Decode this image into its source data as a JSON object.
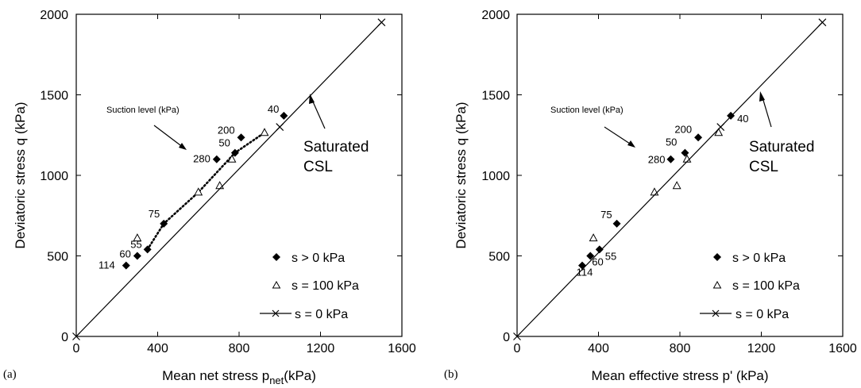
{
  "figure": {
    "panels": [
      {
        "panel_label": "(a)",
        "xlabel": "Mean net stress p",
        "xlabel_sub": "net",
        "xlabel_tail": "(kPa)",
        "ylabel": "Deviatoric stress q (kPa)",
        "xticks": [
          "0",
          "400",
          "800",
          "1200",
          "1600"
        ],
        "yticks": [
          "0",
          "500",
          "1000",
          "1500",
          "2000"
        ],
        "annotation": "Suction level (kPa)",
        "csl_line1": "Saturated",
        "csl_line2": "CSL",
        "legend": [
          "s  > 0 kPa",
          "s = 100 kPa",
          "s = 0 kPa"
        ]
      },
      {
        "panel_label": "(b)",
        "xlabel": "Mean effective stress p' (kPa)",
        "xlabel_sub": "",
        "xlabel_tail": "",
        "ylabel": "Deviatoric stress q (kPa)",
        "xticks": [
          "0",
          "400",
          "800",
          "1200",
          "1600"
        ],
        "yticks": [
          "0",
          "500",
          "1000",
          "1500",
          "2000"
        ],
        "annotation": "Suction level (kPa)",
        "csl_line1": "Saturated",
        "csl_line2": "CSL",
        "legend": [
          "s > 0 kPa",
          "s = 100 kPa",
          "s = 0 kPa"
        ]
      }
    ]
  },
  "chart_data": [
    {
      "type": "scatter",
      "xlabel": "Mean net stress p_net(kPa)",
      "ylabel": "Deviatoric stress q (kPa)",
      "xlim": [
        0,
        1600
      ],
      "ylim": [
        0,
        2000
      ],
      "grid": false,
      "legend_position": "bottom-right",
      "series": [
        {
          "name": "s  > 0 kPa",
          "marker": "filled-diamond",
          "points": [
            {
              "x": 245,
              "y": 440,
              "label": "114"
            },
            {
              "x": 300,
              "y": 500,
              "label": "60"
            },
            {
              "x": 350,
              "y": 540,
              "label": "55"
            },
            {
              "x": 430,
              "y": 700,
              "label": "75"
            },
            {
              "x": 690,
              "y": 1100,
              "label": "280"
            },
            {
              "x": 780,
              "y": 1140,
              "label": "50"
            },
            {
              "x": 810,
              "y": 1235,
              "label": "200"
            },
            {
              "x": 1020,
              "y": 1370,
              "label": "40"
            }
          ]
        },
        {
          "name": "s = 100 kPa",
          "marker": "open-triangle",
          "points": [
            {
              "x": 300,
              "y": 610
            },
            {
              "x": 600,
              "y": 895
            },
            {
              "x": 705,
              "y": 935
            },
            {
              "x": 765,
              "y": 1100
            },
            {
              "x": 925,
              "y": 1265
            }
          ]
        },
        {
          "name": "s = 0 kPa",
          "marker": "x-line",
          "points": [
            {
              "x": 0,
              "y": 0
            },
            {
              "x": 1000,
              "y": 1300
            },
            {
              "x": 1500,
              "y": 1950
            }
          ]
        }
      ],
      "trend_dotted": [
        [
          350,
          540
        ],
        [
          430,
          700
        ],
        [
          600,
          895
        ],
        [
          780,
          1140
        ],
        [
          925,
          1265
        ]
      ]
    },
    {
      "type": "scatter",
      "xlabel": "Mean effective stress p' (kPa)",
      "ylabel": "Deviatoric stress q (kPa)",
      "xlim": [
        0,
        1600
      ],
      "ylim": [
        0,
        2000
      ],
      "grid": false,
      "legend_position": "bottom-right",
      "series": [
        {
          "name": "s > 0 kPa",
          "marker": "filled-diamond",
          "points": [
            {
              "x": 320,
              "y": 440,
              "label": "114"
            },
            {
              "x": 360,
              "y": 500,
              "label": "60"
            },
            {
              "x": 405,
              "y": 540,
              "label": "55"
            },
            {
              "x": 490,
              "y": 700,
              "label": "75"
            },
            {
              "x": 755,
              "y": 1100,
              "label": "280"
            },
            {
              "x": 825,
              "y": 1140,
              "label": "50"
            },
            {
              "x": 890,
              "y": 1235,
              "label": "200"
            },
            {
              "x": 1050,
              "y": 1370,
              "label": "40"
            }
          ]
        },
        {
          "name": "s = 100 kPa",
          "marker": "open-triangle",
          "points": [
            {
              "x": 375,
              "y": 610
            },
            {
              "x": 675,
              "y": 895
            },
            {
              "x": 785,
              "y": 935
            },
            {
              "x": 835,
              "y": 1100
            },
            {
              "x": 990,
              "y": 1265
            }
          ]
        },
        {
          "name": "s = 0 kPa",
          "marker": "x-line",
          "points": [
            {
              "x": 0,
              "y": 0
            },
            {
              "x": 1000,
              "y": 1300
            },
            {
              "x": 1500,
              "y": 1950
            }
          ]
        }
      ]
    }
  ]
}
